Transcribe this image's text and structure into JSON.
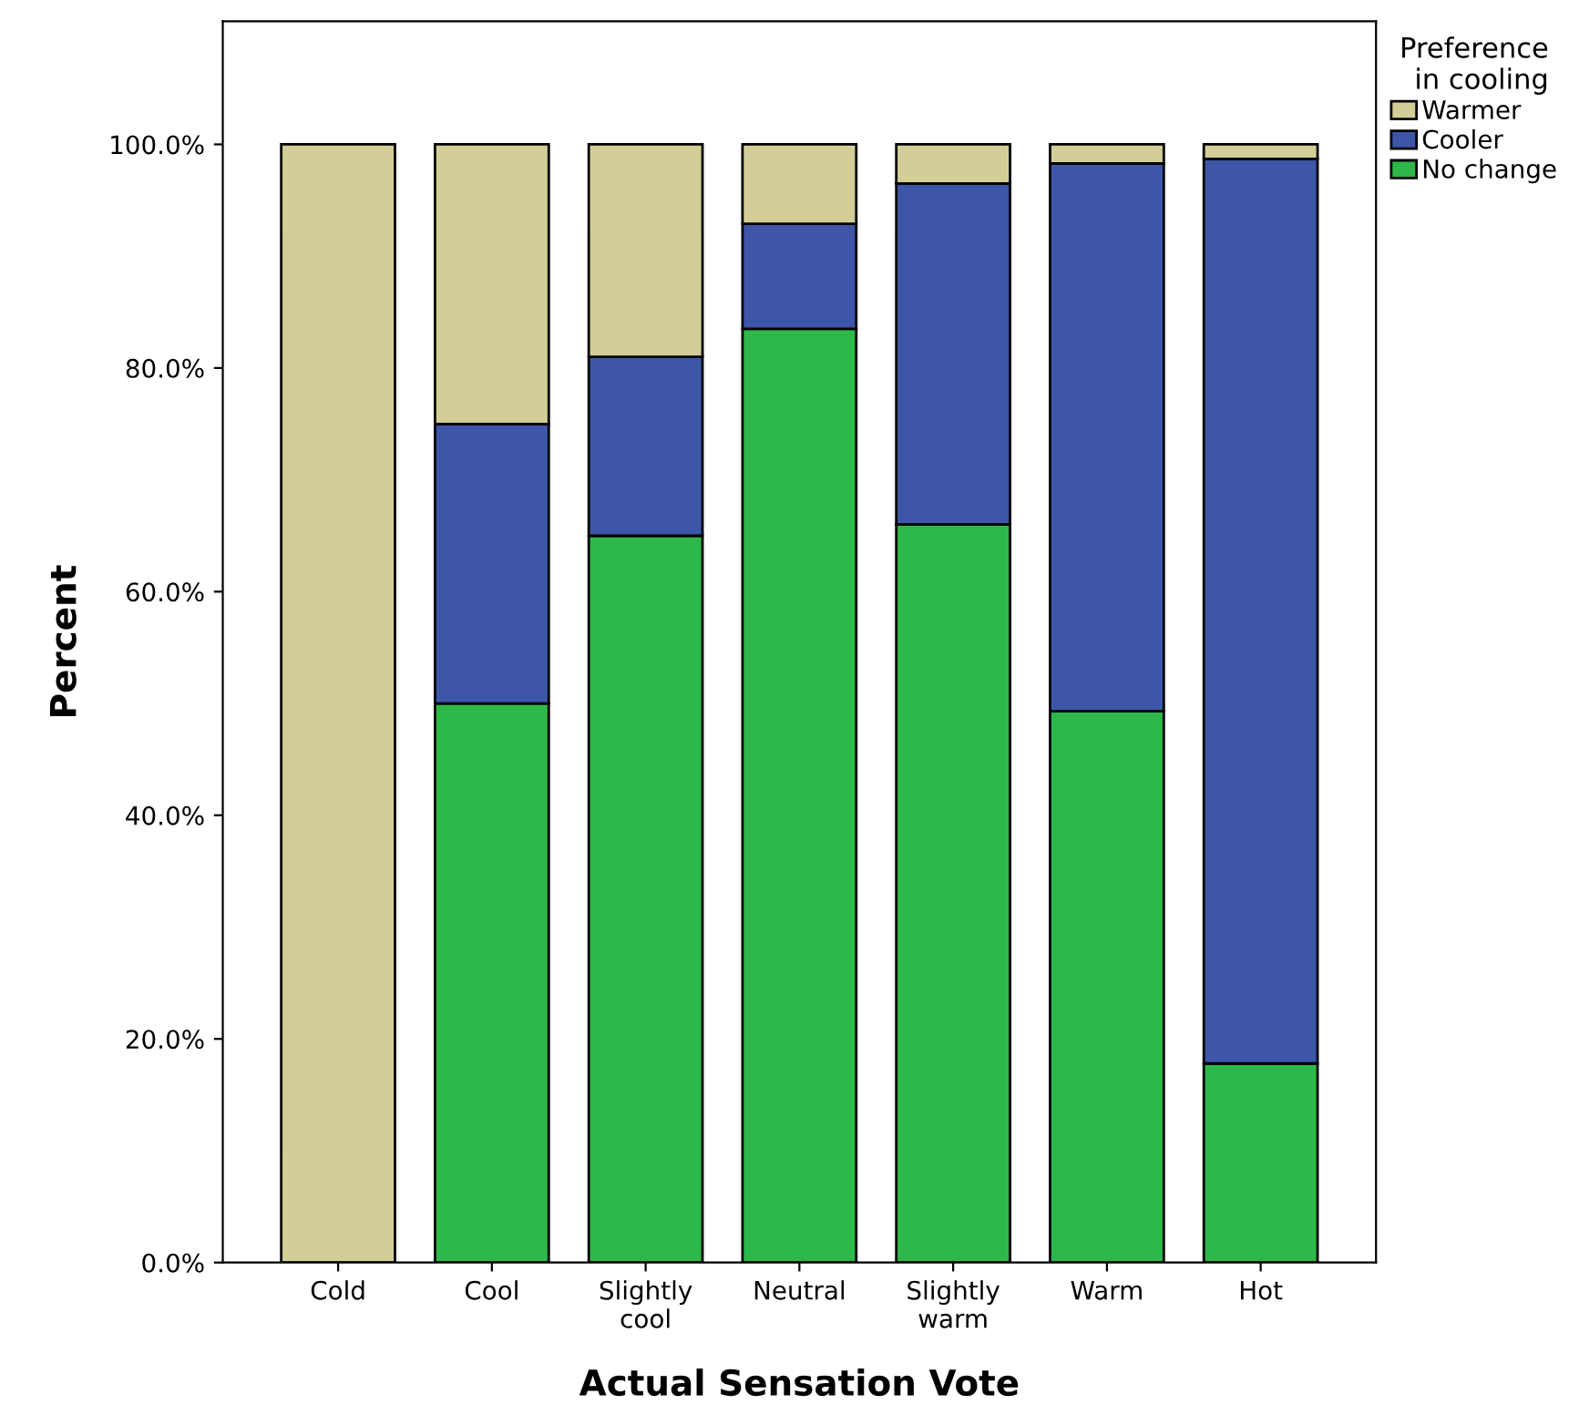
{
  "chart_data": {
    "type": "bar",
    "stacked": true,
    "xlabel": "Actual Sensation Vote",
    "ylabel": "Percent",
    "legend_title": "Preference\nin cooling",
    "legend": "top right",
    "categories": [
      "Cold",
      "Cool",
      "Slightly\ncool",
      "Neutral",
      "Slightly\nwarm",
      "Warm",
      "Hot"
    ],
    "series": [
      {
        "name": "No change",
        "color": "#2eb84a",
        "values": [
          0,
          50,
          65,
          83.5,
          66,
          49.3,
          17.8
        ]
      },
      {
        "name": "Cooler",
        "color": "#3d56a8",
        "values": [
          0,
          25,
          16,
          9.4,
          30.5,
          49,
          80.9
        ]
      },
      {
        "name": "Warmer",
        "color": "#d3ce97",
        "values": [
          100,
          25,
          19,
          7.1,
          3.5,
          1.7,
          1.3
        ]
      }
    ],
    "ylim": [
      0,
      111
    ],
    "yticks": [
      {
        "value": 0,
        "label": "0.0%"
      },
      {
        "value": 20,
        "label": "20.0%"
      },
      {
        "value": 40,
        "label": "40.0%"
      },
      {
        "value": 60,
        "label": "60.0%"
      },
      {
        "value": 80,
        "label": "80.0%"
      },
      {
        "value": 100,
        "label": "100.0%"
      }
    ],
    "grid": false
  }
}
